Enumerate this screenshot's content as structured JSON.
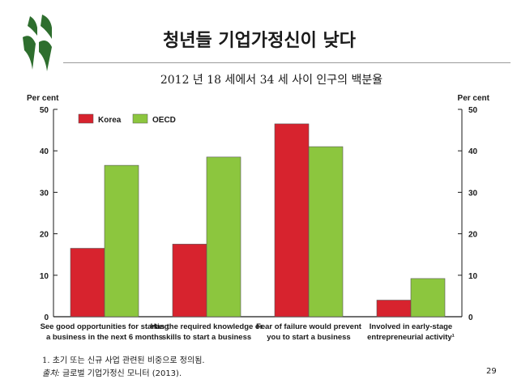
{
  "slide": {
    "title": "청년들 기업가정신이 낮다",
    "footnote": "1. 초기 또는 신규 사업 관련된 비중으로 정의됨.",
    "source_prefix": "출처:",
    "source_text": " 글로벌 기업가정신 모니터 (2013).",
    "page_number": "29"
  },
  "colors": {
    "korea": "#d7232e",
    "oecd": "#8cc63e",
    "logo": "#2e6e2e",
    "axis": "#1a1a1a"
  },
  "chart_data": {
    "type": "bar",
    "title": "2012 년 18 세에서 34 세 사이 인구의 백분율",
    "ylabel_left": "Per cent",
    "ylabel_right": "Per cent",
    "ylim": [
      0,
      50
    ],
    "yticks": [
      0,
      10,
      20,
      30,
      40,
      50
    ],
    "legend_position": "top-left",
    "categories": [
      [
        "See good opportunities for starting",
        "a business in the next 6 months"
      ],
      [
        "Has the required knowledge or",
        "skills to start a business"
      ],
      [
        "Fear of failure would prevent",
        "you to start a business"
      ],
      [
        "Involved in early-stage",
        "entrepreneurial activity¹"
      ]
    ],
    "series": [
      {
        "name": "Korea",
        "color": "#d7232e",
        "values": [
          16.5,
          17.5,
          46.5,
          4
        ]
      },
      {
        "name": "OECD",
        "color": "#8cc63e",
        "values": [
          36.5,
          38.5,
          41,
          9.2
        ]
      }
    ]
  }
}
